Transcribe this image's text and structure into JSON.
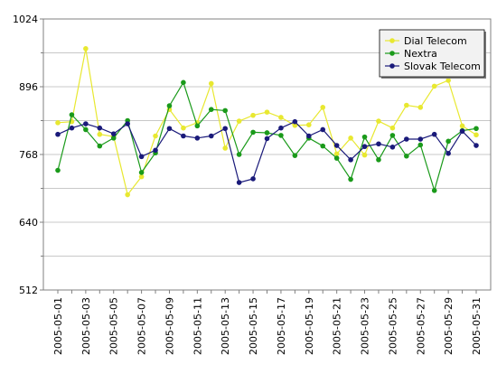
{
  "chart_data": {
    "type": "line",
    "title": "",
    "xlabel": "",
    "ylabel": "",
    "ylim": [
      512,
      1024
    ],
    "yticks": [
      512,
      640,
      768,
      896,
      1024
    ],
    "grid": true,
    "legend_position": "top-right",
    "x": [
      "2005-05-01",
      "2005-05-02",
      "2005-05-03",
      "2005-05-04",
      "2005-05-05",
      "2005-05-06",
      "2005-05-07",
      "2005-05-08",
      "2005-05-09",
      "2005-05-10",
      "2005-05-11",
      "2005-05-12",
      "2005-05-13",
      "2005-05-14",
      "2005-05-15",
      "2005-05-16",
      "2005-05-17",
      "2005-05-18",
      "2005-05-19",
      "2005-05-20",
      "2005-05-21",
      "2005-05-22",
      "2005-05-23",
      "2005-05-24",
      "2005-05-25",
      "2005-05-26",
      "2005-05-27",
      "2005-05-28",
      "2005-05-29",
      "2005-05-30",
      "2005-05-31"
    ],
    "xtick_labels": [
      "2005-05-01",
      "2005-05-03",
      "2005-05-05",
      "2005-05-07",
      "2005-05-09",
      "2005-05-11",
      "2005-05-13",
      "2005-05-15",
      "2005-05-17",
      "2005-05-19",
      "2005-05-21",
      "2005-05-23",
      "2005-05-25",
      "2005-05-27",
      "2005-05-29",
      "2005-05-31"
    ],
    "series": [
      {
        "name": "Dial Telecom",
        "color": "#e8e830",
        "values": [
          828,
          830,
          968,
          806,
          802,
          692,
          726,
          803,
          853,
          818,
          828,
          902,
          780,
          831,
          842,
          848,
          838,
          823,
          824,
          857,
          769,
          799,
          767,
          831,
          818,
          861,
          857,
          897,
          908,
          822,
          805
        ]
      },
      {
        "name": "Nextra",
        "color": "#1a9a1a",
        "values": [
          738,
          843,
          815,
          784,
          799,
          832,
          734,
          771,
          860,
          904,
          822,
          853,
          851,
          768,
          810,
          809,
          804,
          766,
          799,
          784,
          761,
          721,
          801,
          758,
          804,
          765,
          786,
          700,
          793,
          813,
          817
        ]
      },
      {
        "name": "Slovak Telecom",
        "color": "#1a1a7a",
        "values": [
          806,
          818,
          826,
          818,
          807,
          826,
          764,
          776,
          817,
          803,
          799,
          803,
          817,
          715,
          722,
          798,
          818,
          830,
          803,
          815,
          785,
          758,
          783,
          788,
          782,
          797,
          797,
          806,
          770,
          812,
          785
        ]
      }
    ]
  }
}
